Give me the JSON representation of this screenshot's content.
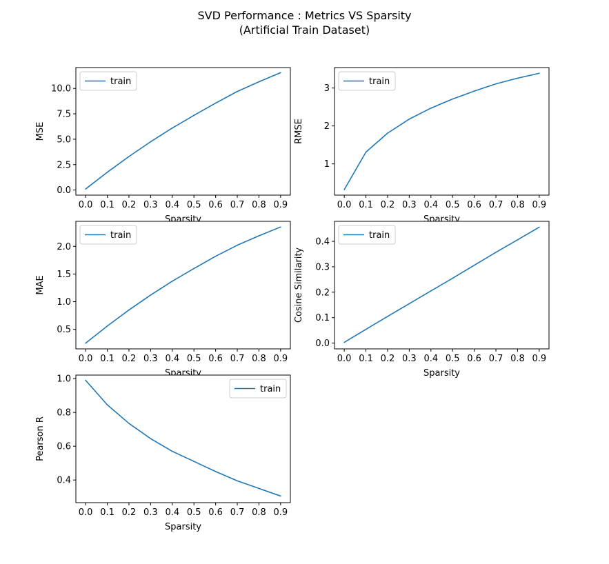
{
  "figure": {
    "title_line1": "SVD Performance : Metrics VS Sparsity",
    "title_line2": "(Artificial Train Dataset)"
  },
  "colors": {
    "series": "#1f77b4",
    "axes": "#000000",
    "legend_border": "#cccccc",
    "background": "#ffffff"
  },
  "chart_data": [
    {
      "type": "line",
      "xlabel": "Sparsity",
      "ylabel": "MSE",
      "x": [
        0.0,
        0.1,
        0.2,
        0.3,
        0.4,
        0.5,
        0.6,
        0.7,
        0.8,
        0.9
      ],
      "xticks": [
        "0.0",
        "0.1",
        "0.2",
        "0.3",
        "0.4",
        "0.5",
        "0.6",
        "0.7",
        "0.8",
        "0.9"
      ],
      "xlim": [
        -0.045,
        0.945
      ],
      "ylim": [
        -0.5,
        12.05
      ],
      "yticks": [
        0.0,
        2.5,
        5.0,
        7.5,
        10.0
      ],
      "ytick_labels": [
        "0.0",
        "2.5",
        "5.0",
        "7.5",
        "10.0"
      ],
      "legend_loc": "upper-left",
      "series": [
        {
          "name": "train",
          "values": [
            0.1,
            1.75,
            3.3,
            4.75,
            6.1,
            7.35,
            8.55,
            9.7,
            10.65,
            11.55
          ]
        }
      ]
    },
    {
      "type": "line",
      "xlabel": "Sparsity",
      "ylabel": "RMSE",
      "x": [
        0.0,
        0.1,
        0.2,
        0.3,
        0.4,
        0.5,
        0.6,
        0.7,
        0.8,
        0.9
      ],
      "xticks": [
        "0.0",
        "0.1",
        "0.2",
        "0.3",
        "0.4",
        "0.5",
        "0.6",
        "0.7",
        "0.8",
        "0.9"
      ],
      "xlim": [
        -0.045,
        0.945
      ],
      "ylim": [
        0.175,
        3.54
      ],
      "yticks": [
        1,
        2,
        3
      ],
      "ytick_labels": [
        "1",
        "2",
        "3"
      ],
      "legend_loc": "upper-left",
      "series": [
        {
          "name": "train",
          "values": [
            0.32,
            1.31,
            1.81,
            2.18,
            2.47,
            2.71,
            2.92,
            3.11,
            3.26,
            3.39
          ]
        }
      ]
    },
    {
      "type": "line",
      "xlabel": "Sparsity",
      "ylabel": "MAE",
      "x": [
        0.0,
        0.1,
        0.2,
        0.3,
        0.4,
        0.5,
        0.6,
        0.7,
        0.8,
        0.9
      ],
      "xticks": [
        "0.0",
        "0.1",
        "0.2",
        "0.3",
        "0.4",
        "0.5",
        "0.6",
        "0.7",
        "0.8",
        "0.9"
      ],
      "xlim": [
        -0.045,
        0.945
      ],
      "ylim": [
        0.147,
        2.452
      ],
      "yticks": [
        0.5,
        1.0,
        1.5,
        2.0
      ],
      "ytick_labels": [
        "0.5",
        "1.0",
        "1.5",
        "2.0"
      ],
      "legend_loc": "upper-left",
      "series": [
        {
          "name": "train",
          "values": [
            0.25,
            0.56,
            0.85,
            1.12,
            1.37,
            1.6,
            1.82,
            2.02,
            2.19,
            2.35
          ]
        }
      ]
    },
    {
      "type": "line",
      "xlabel": "Sparsity",
      "ylabel": "Cosine Similarity",
      "x": [
        0.0,
        0.1,
        0.2,
        0.3,
        0.4,
        0.5,
        0.6,
        0.7,
        0.8,
        0.9
      ],
      "xticks": [
        "0.0",
        "0.1",
        "0.2",
        "0.3",
        "0.4",
        "0.5",
        "0.6",
        "0.7",
        "0.8",
        "0.9"
      ],
      "xlim": [
        -0.045,
        0.945
      ],
      "ylim": [
        -0.0227,
        0.4787
      ],
      "yticks": [
        0.0,
        0.1,
        0.2,
        0.3,
        0.4
      ],
      "ytick_labels": [
        "0.0",
        "0.1",
        "0.2",
        "0.3",
        "0.4"
      ],
      "legend_loc": "upper-left",
      "series": [
        {
          "name": "train",
          "values": [
            0.003,
            0.054,
            0.105,
            0.155,
            0.205,
            0.255,
            0.306,
            0.357,
            0.406,
            0.456
          ]
        }
      ]
    },
    {
      "type": "line",
      "xlabel": "Sparsity",
      "ylabel": "Pearson R",
      "x": [
        0.0,
        0.1,
        0.2,
        0.3,
        0.4,
        0.5,
        0.6,
        0.7,
        0.8,
        0.9
      ],
      "xticks": [
        "0.0",
        "0.1",
        "0.2",
        "0.3",
        "0.4",
        "0.5",
        "0.6",
        "0.7",
        "0.8",
        "0.9"
      ],
      "xlim": [
        -0.045,
        0.945
      ],
      "ylim": [
        0.266,
        1.021
      ],
      "yticks": [
        0.4,
        0.6,
        0.8,
        1.0
      ],
      "ytick_labels": [
        "0.4",
        "0.6",
        "0.8",
        "1.0"
      ],
      "legend_loc": "upper-right",
      "series": [
        {
          "name": "train",
          "values": [
            0.99,
            0.845,
            0.735,
            0.645,
            0.57,
            0.51,
            0.45,
            0.395,
            0.35,
            0.305
          ]
        }
      ]
    }
  ]
}
